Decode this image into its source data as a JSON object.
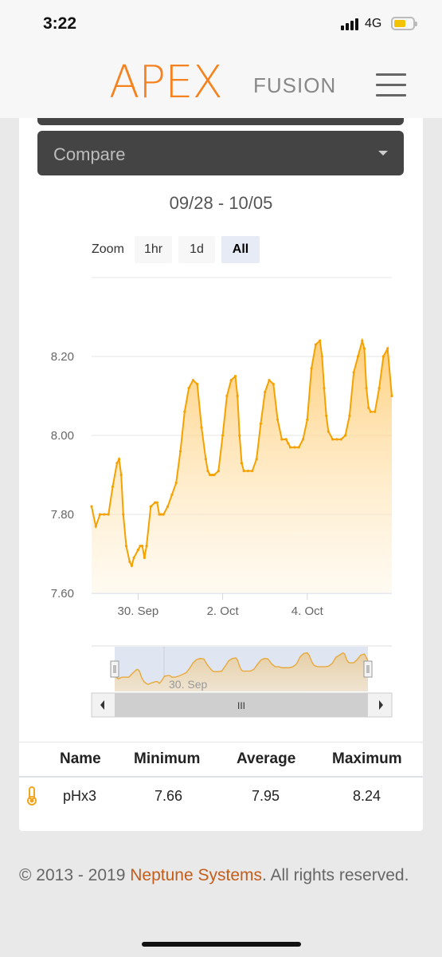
{
  "status_bar": {
    "time": "3:22",
    "network": "4G"
  },
  "header": {
    "logo_main": "APEX",
    "logo_sub": "FUSION"
  },
  "compare": {
    "label": "Compare"
  },
  "date_range": "09/28 - 10/05",
  "zoom": {
    "label": "Zoom",
    "buttons": [
      "1hr",
      "1d",
      "All"
    ],
    "active": "All"
  },
  "colors": {
    "accent": "#f5821f",
    "line": "#f5a200",
    "link": "#c45d1a",
    "navigator": "#e0c79e"
  },
  "chart_data": {
    "type": "area",
    "xlabel": "",
    "ylabel": "",
    "x_tick_labels": [
      "30. Sep",
      "2. Oct",
      "4. Oct"
    ],
    "x_tick_days": [
      30,
      32,
      34
    ],
    "y_tick_labels": [
      "7.60",
      "7.80",
      "8.00",
      "8.20"
    ],
    "ylim": [
      7.6,
      8.4
    ],
    "xlim_days": [
      28.9,
      36.0
    ],
    "grid": true,
    "series": [
      {
        "name": "pHx3",
        "x_days": [
          28.9,
          29.0,
          29.1,
          29.2,
          29.3,
          29.4,
          29.5,
          29.55,
          29.6,
          29.65,
          29.72,
          29.8,
          29.85,
          29.9,
          30.0,
          30.05,
          30.1,
          30.15,
          30.2,
          30.3,
          30.4,
          30.45,
          30.5,
          30.55,
          30.6,
          30.7,
          30.8,
          30.9,
          31.0,
          31.1,
          31.2,
          31.3,
          31.4,
          31.5,
          31.6,
          31.65,
          31.7,
          31.75,
          31.8,
          31.9,
          32.0,
          32.1,
          32.2,
          32.3,
          32.35,
          32.4,
          32.45,
          32.5,
          32.6,
          32.7,
          32.8,
          32.9,
          33.0,
          33.1,
          33.2,
          33.3,
          33.4,
          33.5,
          33.55,
          33.6,
          33.7,
          33.8,
          33.9,
          34.0,
          34.1,
          34.2,
          34.3,
          34.35,
          34.4,
          34.45,
          34.5,
          34.6,
          34.7,
          34.8,
          34.9,
          35.0,
          35.1,
          35.2,
          35.3,
          35.35,
          35.4,
          35.45,
          35.5,
          35.6,
          35.7,
          35.8,
          35.9,
          36.0
        ],
        "values": [
          7.82,
          7.77,
          7.8,
          7.8,
          7.8,
          7.87,
          7.93,
          7.94,
          7.9,
          7.8,
          7.72,
          7.68,
          7.67,
          7.69,
          7.71,
          7.72,
          7.72,
          7.69,
          7.72,
          7.82,
          7.83,
          7.83,
          7.8,
          7.8,
          7.8,
          7.82,
          7.85,
          7.88,
          7.96,
          8.06,
          8.12,
          8.14,
          8.13,
          8.02,
          7.94,
          7.91,
          7.9,
          7.9,
          7.9,
          7.91,
          8.0,
          8.1,
          8.14,
          8.15,
          8.1,
          8.0,
          7.93,
          7.91,
          7.91,
          7.91,
          7.94,
          8.03,
          8.11,
          8.14,
          8.13,
          8.04,
          7.99,
          7.99,
          7.98,
          7.97,
          7.97,
          7.97,
          7.99,
          8.04,
          8.17,
          8.23,
          8.24,
          8.2,
          8.12,
          8.05,
          8.01,
          7.99,
          7.99,
          7.99,
          8.0,
          8.05,
          8.16,
          8.2,
          8.24,
          8.22,
          8.12,
          8.07,
          8.06,
          8.06,
          8.12,
          8.2,
          8.22,
          8.1
        ]
      }
    ]
  },
  "navigator": {
    "tick_label": "30. Sep",
    "scroll_label": "III"
  },
  "table": {
    "headers": {
      "name": "Name",
      "min": "Minimum",
      "avg": "Average",
      "max": "Maximum"
    },
    "rows": [
      {
        "icon": "thermometer-icon",
        "name": "pHx3",
        "min": "7.66",
        "avg": "7.95",
        "max": "8.24"
      }
    ]
  },
  "footer": {
    "prefix": "© 2013 - 2019 ",
    "link": "Neptune Systems",
    "suffix": ". All rights reserved."
  }
}
